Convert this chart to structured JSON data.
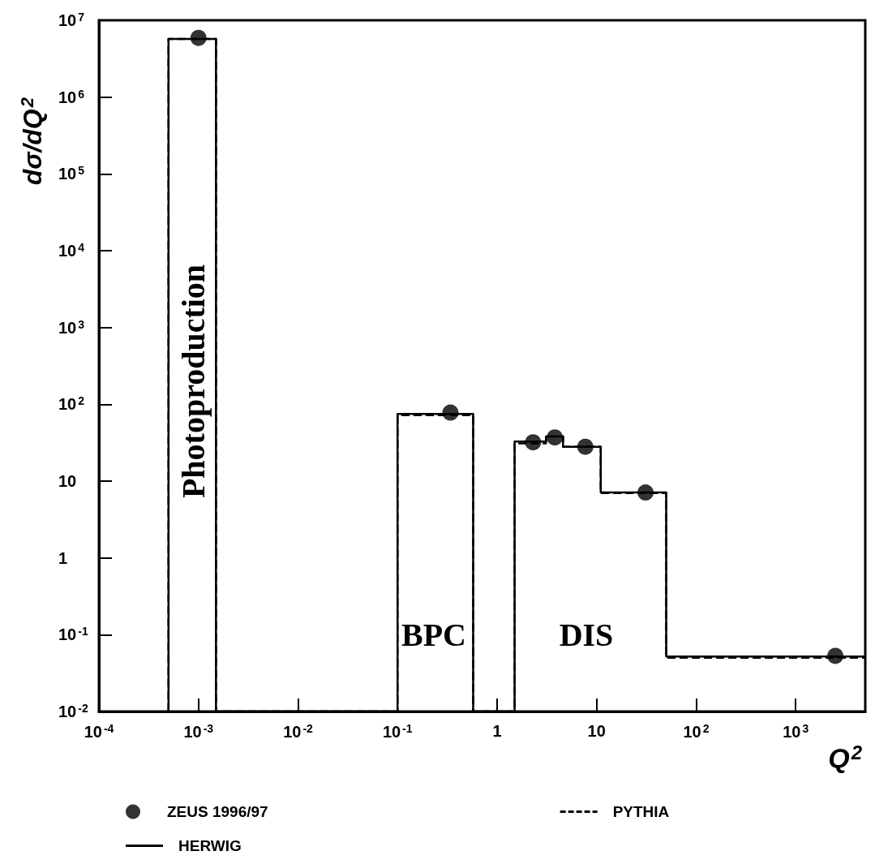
{
  "chart_data": {
    "type": "scatter",
    "xlabel": "Q$^{2}$",
    "ylabel": "dσ/dQ$^{2}$",
    "log": "xy",
    "grid": false,
    "legend": "bottom",
    "xlim": [
      0.0001,
      5000
    ],
    "ylim": [
      0.01,
      10000000
    ],
    "xticks": [
      {
        "value": 0.0001,
        "label": "10$^{-4}$"
      },
      {
        "value": 0.001,
        "label": "10$^{-3}$"
      },
      {
        "value": 0.01,
        "label": "10$^{-2}$"
      },
      {
        "value": 0.1,
        "label": "10$^{-1}$"
      },
      1,
      10,
      {
        "value": 100,
        "label": "10$^{2}$"
      },
      {
        "value": 1000,
        "label": "10$^{3}$"
      }
    ],
    "yticks": [
      {
        "value": 0.01,
        "label": "10$^{-2}$"
      },
      {
        "value": 0.1,
        "label": "10$^{-1}$"
      },
      1,
      10,
      {
        "value": 100,
        "label": "10$^{2}$"
      },
      {
        "value": 1000,
        "label": "10$^{3}$"
      },
      {
        "value": 10000,
        "label": "10$^{4}$"
      },
      {
        "value": 100000,
        "label": "10$^{5}$"
      },
      {
        "value": 1000000,
        "label": "10$^{6}$"
      },
      {
        "value": 10000000,
        "label": "10$^{7}$"
      }
    ],
    "series": [
      {
        "name": "ZEUS 1996/97",
        "type": "scatter",
        "marker": "circle",
        "color": "#000000",
        "x": [
          0.001,
          0.34,
          2.3,
          3.8,
          7.7,
          31,
          2500
        ],
        "values": [
          5900000,
          78,
          32,
          37,
          28,
          7.1,
          0.053
        ]
      },
      {
        "name": "PYTHIA",
        "type": "step",
        "line_style": "dashed",
        "marker": "none",
        "color": "#000000",
        "x": [
          0.0005,
          0.0005,
          0.0015,
          0.1,
          0.1,
          0.575,
          1.5,
          1.5,
          3.1,
          4.6,
          11,
          50,
          5000
        ],
        "values": [
          0.01,
          5700000,
          0.01,
          0.01,
          72,
          0.01,
          0.01,
          31,
          38,
          28,
          7,
          0.05,
          0.05
        ]
      },
      {
        "name": "HERWIG",
        "type": "step",
        "line_style": "solid",
        "marker": "none",
        "color": "#000000",
        "x": [
          0.0005,
          0.0005,
          0.0015,
          0.1,
          0.1,
          0.575,
          1.5,
          1.5,
          3.1,
          4.6,
          11,
          50,
          5000
        ],
        "values": [
          0.01,
          5700000,
          0.01,
          0.01,
          75,
          0.01,
          0.01,
          32.7,
          38,
          28,
          7.1,
          0.052,
          0.052
        ]
      }
    ],
    "annotations": [
      "Photoproduction",
      "BPC",
      "DIS"
    ]
  }
}
